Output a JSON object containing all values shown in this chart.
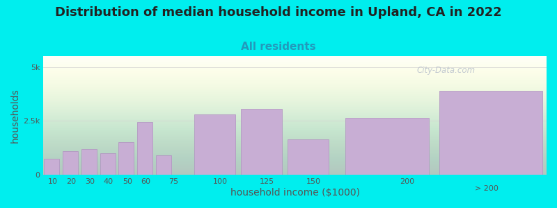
{
  "title": "Distribution of median household income in Upland, CA in 2022",
  "subtitle": "All residents",
  "xlabel": "household income ($1000)",
  "ylabel": "households",
  "background_outer": "#00EEEE",
  "bar_color": "#c8aed4",
  "bar_edge_color": "#b090c0",
  "grid_color": "#d0d0d0",
  "categories": [
    "10",
    "20",
    "30",
    "40",
    "50",
    "60",
    "75",
    "100",
    "125",
    "150",
    "200",
    "> 200"
  ],
  "values": [
    750,
    1100,
    1200,
    1000,
    1500,
    2450,
    900,
    2800,
    3050,
    1650,
    2650,
    3900
  ],
  "bar_lefts": [
    5,
    15,
    25,
    35,
    45,
    55,
    65,
    85,
    110,
    135,
    165,
    215
  ],
  "bar_widths": [
    9,
    9,
    9,
    9,
    9,
    9,
    9,
    24,
    24,
    24,
    49,
    60
  ],
  "xtick_positions": [
    10,
    20,
    30,
    40,
    50,
    60,
    75,
    100,
    125,
    150,
    200
  ],
  "xtick_labels": [
    "10",
    "20",
    "30",
    "40",
    "50",
    "60",
    "75",
    "100",
    "125",
    "150",
    "200"
  ],
  "xlim": [
    5,
    275
  ],
  "ylim": [
    0,
    5500
  ],
  "yticks": [
    0,
    2500,
    5000
  ],
  "ytick_labels": [
    "0",
    "2.5k",
    "5k"
  ],
  "title_fontsize": 13,
  "subtitle_fontsize": 11,
  "axis_label_fontsize": 10,
  "tick_fontsize": 8,
  "watermark_text": "City-Data.com",
  "watermark_color": "#b8c0cc",
  "title_color": "#222222",
  "subtitle_color": "#2299bb"
}
